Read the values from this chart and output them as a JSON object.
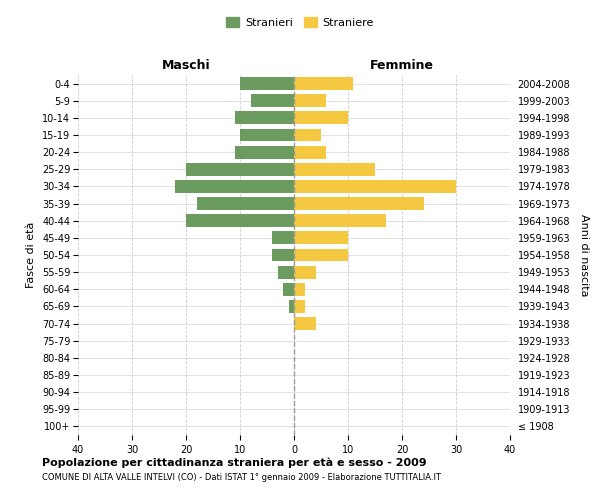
{
  "age_groups": [
    "100+",
    "95-99",
    "90-94",
    "85-89",
    "80-84",
    "75-79",
    "70-74",
    "65-69",
    "60-64",
    "55-59",
    "50-54",
    "45-49",
    "40-44",
    "35-39",
    "30-34",
    "25-29",
    "20-24",
    "15-19",
    "10-14",
    "5-9",
    "0-4"
  ],
  "birth_years": [
    "≤ 1908",
    "1909-1913",
    "1914-1918",
    "1919-1923",
    "1924-1928",
    "1929-1933",
    "1934-1938",
    "1939-1943",
    "1944-1948",
    "1949-1953",
    "1954-1958",
    "1959-1963",
    "1964-1968",
    "1969-1973",
    "1974-1978",
    "1979-1983",
    "1984-1988",
    "1989-1993",
    "1994-1998",
    "1999-2003",
    "2004-2008"
  ],
  "maschi": [
    0,
    0,
    0,
    0,
    0,
    0,
    0,
    1,
    2,
    3,
    4,
    4,
    20,
    18,
    22,
    20,
    11,
    10,
    11,
    8,
    10
  ],
  "femmine": [
    0,
    0,
    0,
    0,
    0,
    0,
    4,
    2,
    2,
    4,
    10,
    10,
    17,
    24,
    30,
    15,
    6,
    5,
    10,
    6,
    11
  ],
  "male_color": "#6b9b5e",
  "female_color": "#f5c842",
  "title1": "Popolazione per cittadinanza straniera per età e sesso - 2009",
  "title2": "COMUNE DI ALTA VALLE INTELVI (CO) - Dati ISTAT 1° gennaio 2009 - Elaborazione TUTTITALIA.IT",
  "legend_male": "Stranieri",
  "legend_female": "Straniere",
  "xlabel_left": "Maschi",
  "xlabel_right": "Femmine",
  "ylabel_left": "Fasce di età",
  "ylabel_right": "Anni di nascita",
  "xlim": 40,
  "background_color": "#ffffff",
  "grid_color": "#cccccc"
}
